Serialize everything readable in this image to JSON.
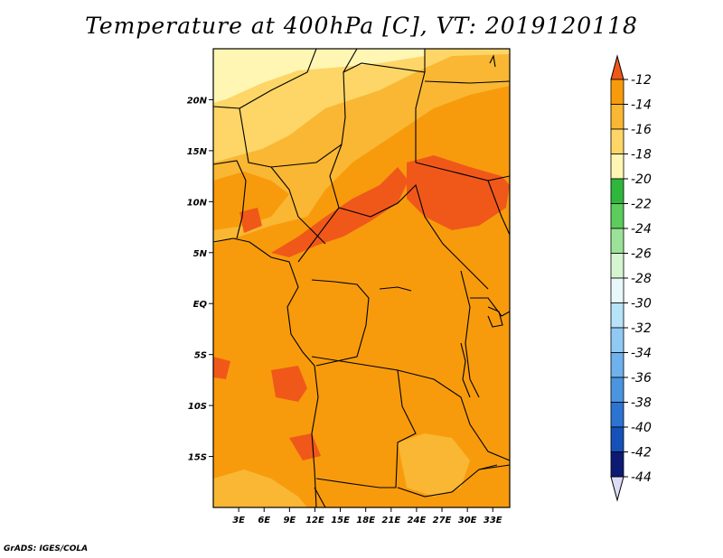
{
  "title": "Temperature at 400hPa [C], VT: 2019120118",
  "credit": "GrADS: IGES/COLA",
  "map": {
    "extent": {
      "lon_min": 0,
      "lon_max": 35,
      "lat_min": -20,
      "lat_max": 25
    },
    "lon_ticks": [
      {
        "value": 3,
        "label": "3E"
      },
      {
        "value": 6,
        "label": "6E"
      },
      {
        "value": 9,
        "label": "9E"
      },
      {
        "value": 12,
        "label": "12E"
      },
      {
        "value": 15,
        "label": "15E"
      },
      {
        "value": 18,
        "label": "18E"
      },
      {
        "value": 21,
        "label": "21E"
      },
      {
        "value": 24,
        "label": "24E"
      },
      {
        "value": 27,
        "label": "27E"
      },
      {
        "value": 30,
        "label": "30E"
      },
      {
        "value": 33,
        "label": "33E"
      }
    ],
    "lat_ticks": [
      {
        "value": 20,
        "label": "20N"
      },
      {
        "value": 15,
        "label": "15N"
      },
      {
        "value": 10,
        "label": "10N"
      },
      {
        "value": 5,
        "label": "5N"
      },
      {
        "value": 0,
        "label": "EQ"
      },
      {
        "value": -5,
        "label": "5S"
      },
      {
        "value": -10,
        "label": "10S"
      },
      {
        "value": -15,
        "label": "15S"
      }
    ]
  },
  "colorbar": {
    "labels": [
      "-12",
      "-14",
      "-16",
      "-18",
      "-20",
      "-22",
      "-24",
      "-26",
      "-28",
      "-30",
      "-32",
      "-34",
      "-36",
      "-38",
      "-40",
      "-42",
      "-44"
    ],
    "colors": [
      "#f0581a",
      "#f79b0c",
      "#f9b733",
      "#fdd667",
      "#fff6b3",
      "#2fb63c",
      "#5ccc5c",
      "#9be298",
      "#d5f5d0",
      "#e8f8fa",
      "#b7e3f8",
      "#91c9f5",
      "#6fb1ec",
      "#4b95e0",
      "#2c73d2",
      "#1551b8",
      "#0c1a73",
      "#dcdcf5"
    ]
  }
}
